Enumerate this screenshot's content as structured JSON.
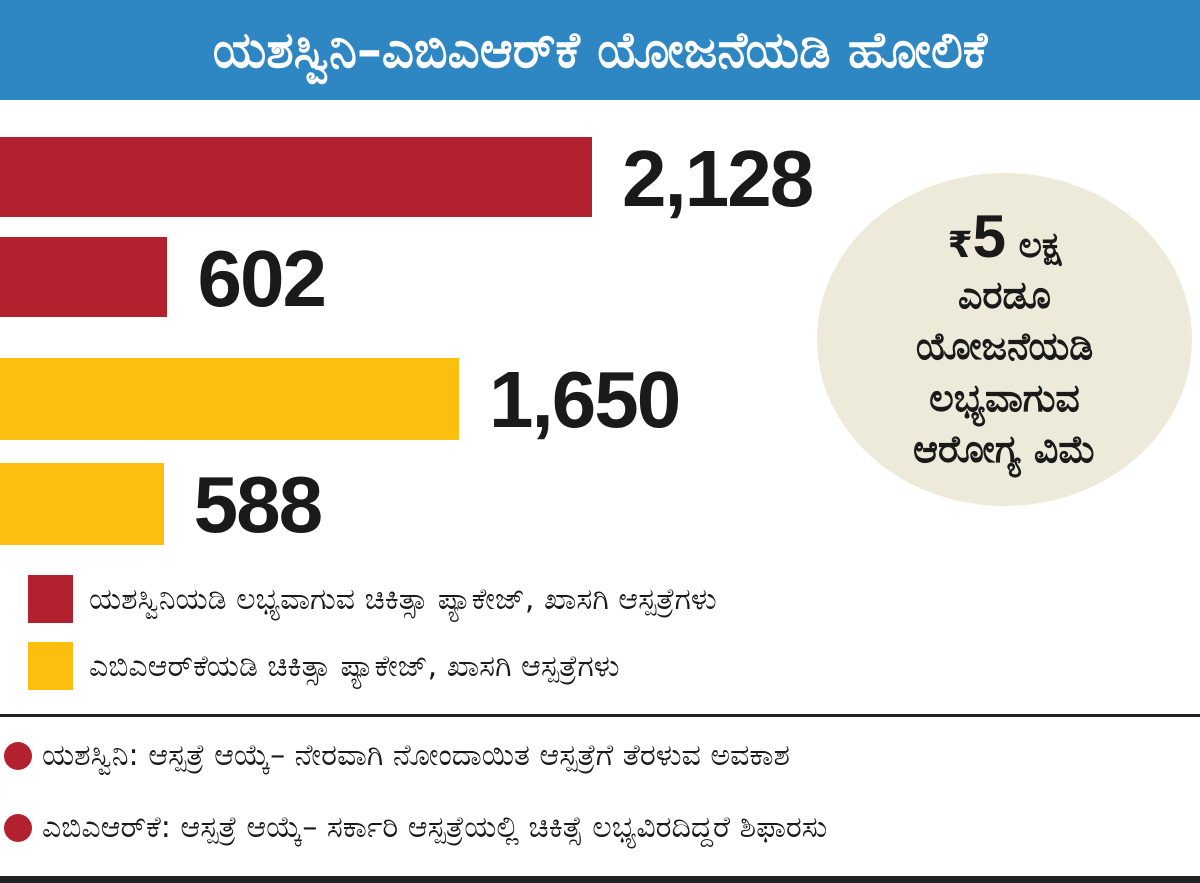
{
  "chart_data": {
    "type": "bar",
    "orientation": "horizontal",
    "title": "ಯಶಸ್ವಿನಿ–ಎಬಿಎಆರ್‌ಕೆ ಯೋಜನೆಯಡಿ ಹೋಲಿಕೆ",
    "series": [
      {
        "name": "ಯಶಸ್ವಿನಿಯಡಿ ಲಭ್ಯವಾಗುವ ಚಿಕಿತ್ಸಾ ಪ್ಯಾಕೇಜ್, ಖಾಸಗಿ ಆಸ್ಪತ್ರೆಗಳು",
        "color": "#b3202e",
        "values": [
          2128,
          602
        ],
        "labels": [
          "2,128",
          "602"
        ]
      },
      {
        "name": "ಎಬಿಎಆರ್‌ಕೆಯಡಿ ಚಿಕಿತ್ಸಾ ಪ್ಯಾಕೇಜ್, ಖಾಸಗಿ ಆಸ್ಪತ್ರೆಗಳು",
        "color": "#fcbf10",
        "values": [
          1650,
          588
        ],
        "labels": [
          "1,650",
          "588"
        ]
      }
    ],
    "categories": [
      "ಚಿಕಿತ್ಸಾ ಪ್ಯಾಕೇಜ್",
      "ಖಾಸಗಿ ಆಸ್ಪತ್ರೆಗಳು"
    ],
    "xlim": [
      0,
      2128
    ],
    "grid": false,
    "legend": "bottom-left"
  },
  "callout": {
    "currency": "₹",
    "amount": "5",
    "unit": "ಲಕ್ಷ",
    "lines": [
      "ಎರಡೂ",
      "ಯೋಜನೆಯಡಿ",
      "ಲಭ್ಯವಾಗುವ",
      "ಆರೋಗ್ಯ ವಿಮೆ"
    ]
  },
  "notes": [
    "ಯಶಸ್ವಿನಿ: ಆಸ್ಪತ್ರೆ ಆಯ್ಕೆ– ನೇರವಾಗಿ ನೋಂದಾಯಿತ ಆಸ್ಪತ್ರೆಗೆ ತೆರಳುವ ಅವಕಾಶ",
    "ಎಬಿಎಆರ್‌ಕೆ: ಆಸ್ಪತ್ರೆ ಆಯ್ಕೆ– ಸರ್ಕಾರಿ ಆಸ್ಪತ್ರೆಯಲ್ಲಿ ಚಿಕಿತ್ಸೆ ಲಭ್ಯವಿರದಿದ್ದರೆ ಶಿಫಾರಸು"
  ]
}
